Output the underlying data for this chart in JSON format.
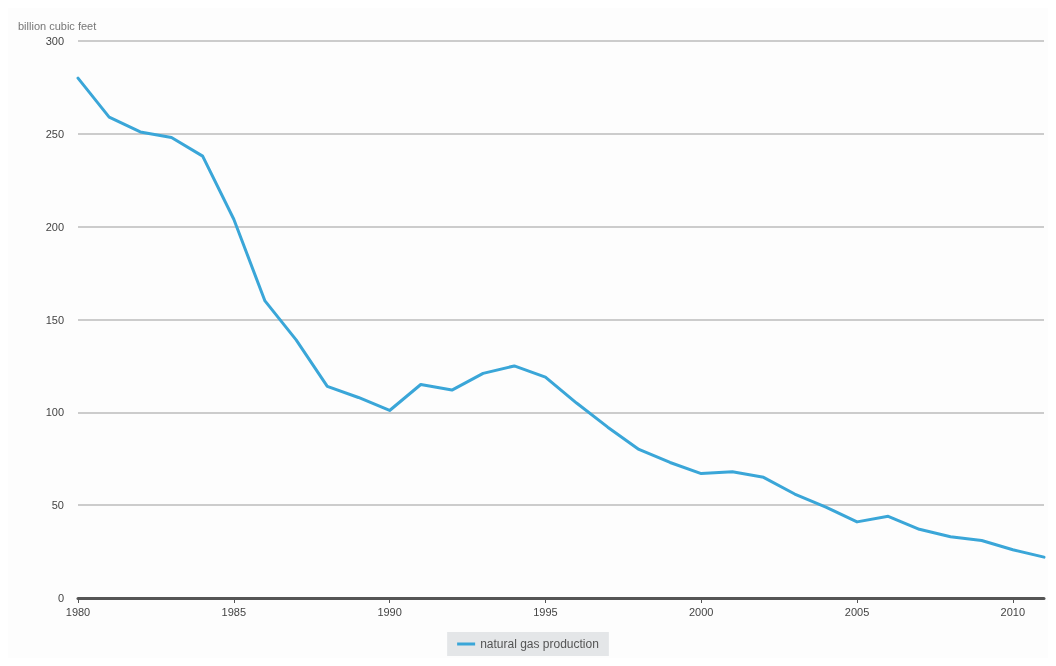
{
  "chart_data": {
    "type": "line",
    "ylabel": "billion cubic feet",
    "x": [
      1980,
      1981,
      1982,
      1983,
      1984,
      1985,
      1986,
      1987,
      1988,
      1989,
      1990,
      1991,
      1992,
      1993,
      1994,
      1995,
      1996,
      1997,
      1998,
      1999,
      2000,
      2001,
      2002,
      2003,
      2004,
      2005,
      2006,
      2007,
      2008,
      2009,
      2010,
      2011
    ],
    "series": [
      {
        "name": "natural gas production",
        "color": "#3aa6d8",
        "values": [
          280,
          259,
          251,
          248,
          238,
          204,
          160,
          139,
          114,
          108,
          101,
          115,
          112,
          121,
          125,
          119,
          105,
          92,
          80,
          73,
          67,
          68,
          65,
          56,
          49,
          41,
          44,
          37,
          33,
          31,
          26,
          22
        ]
      }
    ],
    "xlim": [
      1980,
      2011
    ],
    "xticks": [
      1980,
      1985,
      1990,
      1995,
      2000,
      2005,
      2010
    ],
    "ylim": [
      0,
      300
    ],
    "yticks": [
      0,
      50,
      100,
      150,
      200,
      250,
      300
    ],
    "grid": "y",
    "legend": "bottom",
    "marker": "none",
    "line_style": "solid"
  }
}
